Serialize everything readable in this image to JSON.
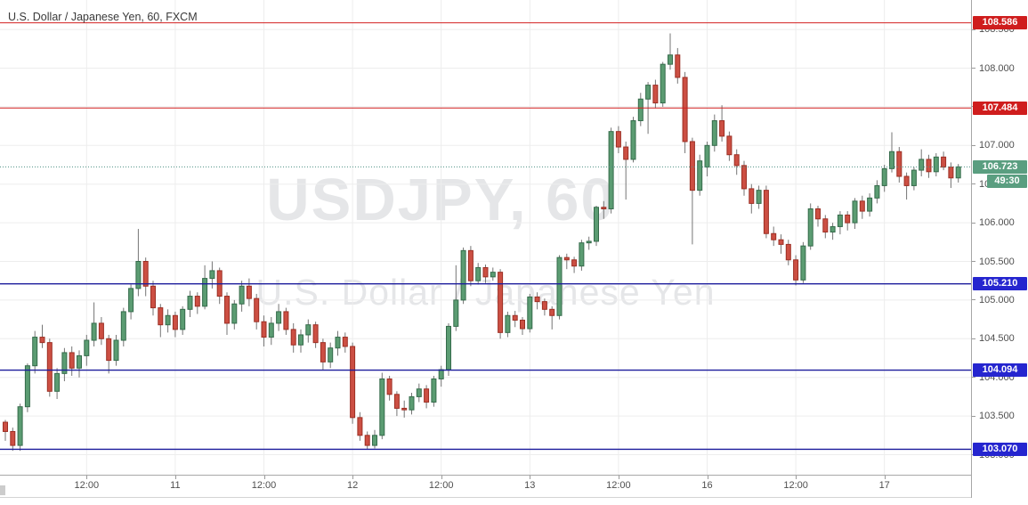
{
  "header": {
    "title": "U.S. Dollar / Japanese Yen, 60, FXCM"
  },
  "watermark": {
    "line1": "USDJPY, 60",
    "line2": "U.S. Dollar / Japanese Yen"
  },
  "price_axis": {
    "tick_labels": [
      "108.500",
      "108.000",
      "107.500",
      "107.000",
      "106.500",
      "106.000",
      "105.500",
      "105.000",
      "104.500",
      "104.000",
      "103.500",
      "103.000"
    ],
    "badges": [
      {
        "label": "108.586",
        "price": 108.586,
        "color_key": "red",
        "role": "level"
      },
      {
        "label": "107.484",
        "price": 107.484,
        "color_key": "red",
        "role": "level"
      },
      {
        "label": "106.723",
        "price": 106.723,
        "color_key": "teal",
        "role": "last-price"
      },
      {
        "label": "49:30",
        "price": 106.723,
        "color_key": "teal",
        "role": "countdown"
      },
      {
        "label": "105.210",
        "price": 105.21,
        "color_key": "blue",
        "role": "level"
      },
      {
        "label": "104.094",
        "price": 104.094,
        "color_key": "blue",
        "role": "level"
      },
      {
        "label": "103.070",
        "price": 103.07,
        "color_key": "blue",
        "role": "level"
      }
    ]
  },
  "time_axis": {
    "ticks": [
      {
        "label": "12:00",
        "bar": 11
      },
      {
        "label": "11",
        "bar": 23
      },
      {
        "label": "12:00",
        "bar": 35
      },
      {
        "label": "12",
        "bar": 47
      },
      {
        "label": "12:00",
        "bar": 59
      },
      {
        "label": "13",
        "bar": 71
      },
      {
        "label": "12:00",
        "bar": 83
      },
      {
        "label": "16",
        "bar": 95
      },
      {
        "label": "12:00",
        "bar": 107
      },
      {
        "label": "17",
        "bar": 119
      }
    ]
  },
  "levels": [
    {
      "price": 108.586,
      "color_key": "red",
      "style": "solid"
    },
    {
      "price": 107.484,
      "color_key": "red",
      "style": "solid"
    },
    {
      "price": 105.21,
      "color_key": "blue",
      "style": "solid"
    },
    {
      "price": 104.094,
      "color_key": "blue",
      "style": "solid"
    },
    {
      "price": 103.07,
      "color_key": "blue",
      "style": "solid"
    },
    {
      "price": 106.723,
      "color_key": "teal",
      "style": "dotted",
      "role": "last-price-line"
    }
  ],
  "colors": {
    "up": "#5b9c72",
    "up_border": "#356b4b",
    "down": "#cc4f43",
    "down_border": "#9c2f24",
    "wick": "#757575",
    "red": "#d32020",
    "badge_red": "#cf1d1d",
    "blue": "#1c1c9c",
    "badge_blue": "#2525cf",
    "teal": "#4d9184",
    "badge_teal": "#5a9e80",
    "grid": "#ededed",
    "axis_text": "#4f4f4f"
  },
  "chart_data": {
    "type": "candlestick",
    "title": "U.S. Dollar / Japanese Yen, 60, FXCM",
    "symbol": "USDJPY",
    "interval_minutes": 60,
    "exchange": "FXCM",
    "bar_format": [
      "open",
      "high",
      "low",
      "close"
    ],
    "visible_price_range": [
      102.75,
      108.88
    ],
    "last_close": 106.723,
    "countdown": "49:30",
    "day_sessions": [
      {
        "axis_label": "(pre-11)",
        "bars": 23
      },
      {
        "axis_label": "11",
        "bars": 24
      },
      {
        "axis_label": "12",
        "bars": 24
      },
      {
        "axis_label": "13",
        "bars": 24
      },
      {
        "axis_label": "16",
        "bars": 24
      },
      {
        "axis_label": "17",
        "bars": 11
      }
    ],
    "bars": [
      [
        103.42,
        103.45,
        103.18,
        103.3
      ],
      [
        103.3,
        103.35,
        103.05,
        103.12
      ],
      [
        103.12,
        103.66,
        103.05,
        103.62
      ],
      [
        103.62,
        104.18,
        103.55,
        104.15
      ],
      [
        104.15,
        104.6,
        104.05,
        104.52
      ],
      [
        104.52,
        104.68,
        104.38,
        104.45
      ],
      [
        104.45,
        104.5,
        103.75,
        103.82
      ],
      [
        103.82,
        104.12,
        103.72,
        104.05
      ],
      [
        104.05,
        104.38,
        103.95,
        104.32
      ],
      [
        104.32,
        104.4,
        104.02,
        104.12
      ],
      [
        104.12,
        104.35,
        104.0,
        104.28
      ],
      [
        104.28,
        104.55,
        104.15,
        104.48
      ],
      [
        104.48,
        104.97,
        104.4,
        104.7
      ],
      [
        104.7,
        104.78,
        104.42,
        104.5
      ],
      [
        104.5,
        104.55,
        104.05,
        104.22
      ],
      [
        104.22,
        104.55,
        104.15,
        104.48
      ],
      [
        104.48,
        104.9,
        104.4,
        104.85
      ],
      [
        104.85,
        105.2,
        104.75,
        105.15
      ],
      [
        105.15,
        105.92,
        105.05,
        105.5
      ],
      [
        105.5,
        105.55,
        105.05,
        105.18
      ],
      [
        105.18,
        105.25,
        104.8,
        104.9
      ],
      [
        104.9,
        104.95,
        104.52,
        104.68
      ],
      [
        104.68,
        104.88,
        104.58,
        104.8
      ],
      [
        104.8,
        104.85,
        104.52,
        104.62
      ],
      [
        104.62,
        104.92,
        104.55,
        104.88
      ],
      [
        104.88,
        105.12,
        104.78,
        105.05
      ],
      [
        105.05,
        105.1,
        104.82,
        104.92
      ],
      [
        104.92,
        105.45,
        104.88,
        105.28
      ],
      [
        105.28,
        105.5,
        105.15,
        105.38
      ],
      [
        105.38,
        105.42,
        104.95,
        105.05
      ],
      [
        105.05,
        105.1,
        104.55,
        104.7
      ],
      [
        104.7,
        105.0,
        104.62,
        104.95
      ],
      [
        104.95,
        105.25,
        104.85,
        105.18
      ],
      [
        105.18,
        105.28,
        104.92,
        105.02
      ],
      [
        105.02,
        105.08,
        104.62,
        104.72
      ],
      [
        104.72,
        104.8,
        104.4,
        104.52
      ],
      [
        104.52,
        104.78,
        104.42,
        104.7
      ],
      [
        104.7,
        104.95,
        104.6,
        104.85
      ],
      [
        104.85,
        104.9,
        104.55,
        104.62
      ],
      [
        104.62,
        104.7,
        104.32,
        104.42
      ],
      [
        104.42,
        104.62,
        104.32,
        104.55
      ],
      [
        104.55,
        104.75,
        104.45,
        104.68
      ],
      [
        104.68,
        104.72,
        104.38,
        104.45
      ],
      [
        104.45,
        104.5,
        104.1,
        104.2
      ],
      [
        104.2,
        104.45,
        104.12,
        104.38
      ],
      [
        104.38,
        104.6,
        104.28,
        104.52
      ],
      [
        104.52,
        104.58,
        104.32,
        104.4
      ],
      [
        104.4,
        104.45,
        103.4,
        103.48
      ],
      [
        103.48,
        103.55,
        103.18,
        103.25
      ],
      [
        103.25,
        103.3,
        103.07,
        103.12
      ],
      [
        103.12,
        103.32,
        103.08,
        103.25
      ],
      [
        103.25,
        104.06,
        103.2,
        103.98
      ],
      [
        103.98,
        104.02,
        103.7,
        103.78
      ],
      [
        103.78,
        103.82,
        103.5,
        103.6
      ],
      [
        103.6,
        103.7,
        103.48,
        103.58
      ],
      [
        103.58,
        103.8,
        103.52,
        103.75
      ],
      [
        103.75,
        103.92,
        103.68,
        103.85
      ],
      [
        103.85,
        103.9,
        103.6,
        103.68
      ],
      [
        103.68,
        104.02,
        103.62,
        103.98
      ],
      [
        103.98,
        104.15,
        103.88,
        104.1
      ],
      [
        104.1,
        104.7,
        104.02,
        104.66
      ],
      [
        104.66,
        105.45,
        104.6,
        105.0
      ],
      [
        105.0,
        105.68,
        104.95,
        105.64
      ],
      [
        105.64,
        105.7,
        105.18,
        105.25
      ],
      [
        105.25,
        105.48,
        105.2,
        105.42
      ],
      [
        105.42,
        105.46,
        105.22,
        105.3
      ],
      [
        105.3,
        105.42,
        105.25,
        105.36
      ],
      [
        105.36,
        105.4,
        104.5,
        104.58
      ],
      [
        104.58,
        104.85,
        104.52,
        104.8
      ],
      [
        104.8,
        104.86,
        104.65,
        104.74
      ],
      [
        104.74,
        104.78,
        104.55,
        104.63
      ],
      [
        104.63,
        105.08,
        104.58,
        105.04
      ],
      [
        105.04,
        105.1,
        104.88,
        104.98
      ],
      [
        104.98,
        105.02,
        104.8,
        104.88
      ],
      [
        104.88,
        104.92,
        104.62,
        104.8
      ],
      [
        104.8,
        105.58,
        104.75,
        105.55
      ],
      [
        105.55,
        105.6,
        105.4,
        105.52
      ],
      [
        105.52,
        105.56,
        105.35,
        105.44
      ],
      [
        105.44,
        105.78,
        105.38,
        105.74
      ],
      [
        105.74,
        105.82,
        105.65,
        105.76
      ],
      [
        105.76,
        106.22,
        105.7,
        106.2
      ],
      [
        106.2,
        106.28,
        106.05,
        106.18
      ],
      [
        106.18,
        107.23,
        106.12,
        107.18
      ],
      [
        107.18,
        107.25,
        106.9,
        106.98
      ],
      [
        106.98,
        107.05,
        106.3,
        106.82
      ],
      [
        106.82,
        107.37,
        106.78,
        107.32
      ],
      [
        107.32,
        107.68,
        107.25,
        107.6
      ],
      [
        107.6,
        107.82,
        107.15,
        107.78
      ],
      [
        107.78,
        107.85,
        107.48,
        107.55
      ],
      [
        107.55,
        108.08,
        107.5,
        108.05
      ],
      [
        108.05,
        108.45,
        107.98,
        108.17
      ],
      [
        108.17,
        108.26,
        107.8,
        107.88
      ],
      [
        107.88,
        107.95,
        106.9,
        107.05
      ],
      [
        107.05,
        107.1,
        105.72,
        106.42
      ],
      [
        106.42,
        106.88,
        106.35,
        106.8
      ],
      [
        106.72,
        107.05,
        106.6,
        107.0
      ],
      [
        107.0,
        107.4,
        106.92,
        107.32
      ],
      [
        107.32,
        107.52,
        107.05,
        107.12
      ],
      [
        107.12,
        107.18,
        106.8,
        106.88
      ],
      [
        106.88,
        106.95,
        106.62,
        106.74
      ],
      [
        106.74,
        106.8,
        106.35,
        106.44
      ],
      [
        106.44,
        106.5,
        106.12,
        106.25
      ],
      [
        106.25,
        106.48,
        106.18,
        106.42
      ],
      [
        106.42,
        106.48,
        105.8,
        105.86
      ],
      [
        105.86,
        105.95,
        105.7,
        105.78
      ],
      [
        105.78,
        105.85,
        105.6,
        105.72
      ],
      [
        105.72,
        105.78,
        105.45,
        105.52
      ],
      [
        105.52,
        105.58,
        105.19,
        105.26
      ],
      [
        105.26,
        105.75,
        105.22,
        105.7
      ],
      [
        105.7,
        106.25,
        105.65,
        106.18
      ],
      [
        106.18,
        106.22,
        105.95,
        106.05
      ],
      [
        106.05,
        106.1,
        105.8,
        105.88
      ],
      [
        105.88,
        106.0,
        105.78,
        105.95
      ],
      [
        105.95,
        106.15,
        105.85,
        106.1
      ],
      [
        106.1,
        106.15,
        105.9,
        106.0
      ],
      [
        106.0,
        106.32,
        105.92,
        106.28
      ],
      [
        106.28,
        106.35,
        106.05,
        106.15
      ],
      [
        106.15,
        106.38,
        106.08,
        106.32
      ],
      [
        106.32,
        106.55,
        106.25,
        106.48
      ],
      [
        106.48,
        106.75,
        106.4,
        106.7
      ],
      [
        106.7,
        107.17,
        106.65,
        106.92
      ],
      [
        106.92,
        106.98,
        106.52,
        106.6
      ],
      [
        106.6,
        106.65,
        106.3,
        106.48
      ],
      [
        106.48,
        106.72,
        106.42,
        106.68
      ],
      [
        106.68,
        106.95,
        106.6,
        106.82
      ],
      [
        106.82,
        106.88,
        106.58,
        106.66
      ],
      [
        106.66,
        106.9,
        106.6,
        106.85
      ],
      [
        106.85,
        106.92,
        106.68,
        106.72
      ],
      [
        106.72,
        106.78,
        106.45,
        106.58
      ],
      [
        106.58,
        106.76,
        106.52,
        106.723
      ]
    ]
  }
}
